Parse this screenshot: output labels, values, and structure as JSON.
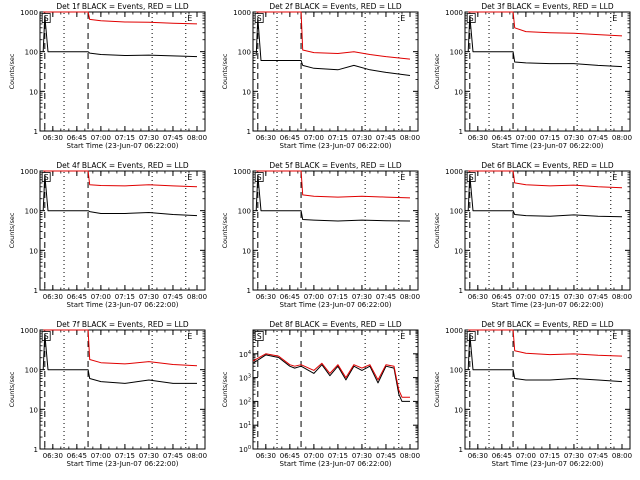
{
  "colors": {
    "events": "#000000",
    "lld": "#e00000",
    "axis": "#000000",
    "background": "#ffffff"
  },
  "chart_data": [
    {
      "type": "line",
      "title": "Det 1f BLACK = Events, RED = LLD",
      "xlabel": "Start Time (23-Jun-07 06:22:00)",
      "ylabel": "Counts/sec",
      "x_ticks": [
        "06:30",
        "06:45",
        "07:00",
        "07:15",
        "07:30",
        "07:45",
        "08:00"
      ],
      "y_ticks": [
        "1",
        "10",
        "100",
        "1000"
      ],
      "y_scale": "log",
      "ylim": [
        1,
        1000
      ],
      "markers": [
        "S",
        "E"
      ],
      "series": [
        {
          "name": "Events",
          "color": "#000000",
          "x": [
            "06:24",
            "06:25",
            "06:27",
            "06:52",
            "06:53",
            "07:00",
            "07:15",
            "07:30",
            "07:45",
            "08:00"
          ],
          "values": [
            100,
            800,
            100,
            100,
            92,
            85,
            80,
            82,
            78,
            75
          ]
        },
        {
          "name": "LLD",
          "color": "#e00000",
          "x": [
            "06:24",
            "06:25",
            "06:27",
            "06:52",
            "06:53",
            "07:00",
            "07:15",
            "07:30",
            "07:45",
            "08:00"
          ],
          "values": [
            1000,
            1000,
            1000,
            1000,
            650,
            600,
            560,
            550,
            520,
            500
          ]
        }
      ]
    },
    {
      "type": "line",
      "title": "Det 2f BLACK = Events, RED = LLD",
      "xlabel": "Start Time (23-Jun-07 06:22:00)",
      "ylabel": "Counts/sec",
      "x_ticks": [
        "06:30",
        "06:45",
        "07:00",
        "07:15",
        "07:30",
        "07:45",
        "08:00"
      ],
      "y_ticks": [
        "1",
        "10",
        "100",
        "1000"
      ],
      "y_scale": "log",
      "ylim": [
        1,
        1000
      ],
      "markers": [
        "S",
        "E"
      ],
      "series": [
        {
          "name": "Events",
          "color": "#000000",
          "x": [
            "06:24",
            "06:25",
            "06:27",
            "06:52",
            "06:53",
            "07:00",
            "07:15",
            "07:25",
            "07:35",
            "07:45",
            "08:00"
          ],
          "values": [
            80,
            700,
            60,
            60,
            45,
            38,
            35,
            45,
            35,
            30,
            25
          ]
        },
        {
          "name": "LLD",
          "color": "#e00000",
          "x": [
            "06:24",
            "06:25",
            "06:27",
            "06:52",
            "06:53",
            "07:00",
            "07:15",
            "07:25",
            "07:35",
            "07:45",
            "08:00"
          ],
          "values": [
            1000,
            1000,
            1000,
            1000,
            110,
            95,
            90,
            100,
            85,
            75,
            65
          ]
        }
      ]
    },
    {
      "type": "line",
      "title": "Det 3f BLACK = Events, RED = LLD",
      "xlabel": "Start Time (23-Jun-07 06:22:00)",
      "ylabel": "Counts/sec",
      "x_ticks": [
        "06:30",
        "06:45",
        "07:00",
        "07:15",
        "07:30",
        "07:45",
        "08:00"
      ],
      "y_ticks": [
        "1",
        "10",
        "100",
        "1000"
      ],
      "y_scale": "log",
      "ylim": [
        1,
        1000
      ],
      "markers": [
        "S",
        "E"
      ],
      "series": [
        {
          "name": "Events",
          "color": "#000000",
          "x": [
            "06:24",
            "06:25",
            "06:27",
            "06:52",
            "06:53",
            "07:00",
            "07:15",
            "07:30",
            "07:45",
            "08:00"
          ],
          "values": [
            100,
            800,
            100,
            100,
            55,
            52,
            50,
            50,
            45,
            42
          ]
        },
        {
          "name": "LLD",
          "color": "#e00000",
          "x": [
            "06:24",
            "06:25",
            "06:27",
            "06:52",
            "06:53",
            "07:00",
            "07:15",
            "07:30",
            "07:45",
            "08:00"
          ],
          "values": [
            1000,
            1000,
            1000,
            1000,
            400,
            320,
            300,
            290,
            270,
            250
          ]
        }
      ]
    },
    {
      "type": "line",
      "title": "Det 4f BLACK = Events, RED = LLD",
      "xlabel": "Start Time (23-Jun-07 06:22:00)",
      "ylabel": "Counts/sec",
      "x_ticks": [
        "06:30",
        "06:45",
        "07:00",
        "07:15",
        "07:30",
        "07:45",
        "08:00"
      ],
      "y_ticks": [
        "1",
        "10",
        "100",
        "1000"
      ],
      "y_scale": "log",
      "ylim": [
        1,
        1000
      ],
      "markers": [
        "S",
        "E"
      ],
      "series": [
        {
          "name": "Events",
          "color": "#000000",
          "x": [
            "06:24",
            "06:25",
            "06:27",
            "06:52",
            "06:53",
            "07:00",
            "07:15",
            "07:30",
            "07:45",
            "08:00"
          ],
          "values": [
            100,
            800,
            100,
            100,
            95,
            85,
            85,
            90,
            80,
            75
          ]
        },
        {
          "name": "LLD",
          "color": "#e00000",
          "x": [
            "06:24",
            "06:25",
            "06:27",
            "06:52",
            "06:53",
            "07:00",
            "07:15",
            "07:30",
            "07:45",
            "08:00"
          ],
          "values": [
            1000,
            1000,
            1000,
            1000,
            450,
            430,
            420,
            450,
            420,
            400
          ]
        }
      ]
    },
    {
      "type": "line",
      "title": "Det 5f BLACK = Events, RED = LLD",
      "xlabel": "Start Time (23-Jun-07 06:22:00)",
      "ylabel": "Counts/sec",
      "x_ticks": [
        "06:30",
        "06:45",
        "07:00",
        "07:15",
        "07:30",
        "07:45",
        "08:00"
      ],
      "y_ticks": [
        "1",
        "10",
        "100",
        "1000"
      ],
      "y_scale": "log",
      "ylim": [
        1,
        1000
      ],
      "markers": [
        "S",
        "E"
      ],
      "series": [
        {
          "name": "Events",
          "color": "#000000",
          "x": [
            "06:24",
            "06:25",
            "06:27",
            "06:52",
            "06:53",
            "07:00",
            "07:15",
            "07:30",
            "07:45",
            "08:00"
          ],
          "values": [
            100,
            800,
            100,
            100,
            60,
            58,
            55,
            58,
            56,
            55
          ]
        },
        {
          "name": "LLD",
          "color": "#e00000",
          "x": [
            "06:24",
            "06:25",
            "06:27",
            "06:52",
            "06:53",
            "07:00",
            "07:15",
            "07:30",
            "07:45",
            "08:00"
          ],
          "values": [
            1000,
            1000,
            1000,
            1000,
            250,
            230,
            220,
            230,
            220,
            210
          ]
        }
      ]
    },
    {
      "type": "line",
      "title": "Det 6f BLACK = Events, RED = LLD",
      "xlabel": "Start Time (23-Jun-07 06:22:00)",
      "ylabel": "Counts/sec",
      "x_ticks": [
        "06:30",
        "06:45",
        "07:00",
        "07:15",
        "07:30",
        "07:45",
        "08:00"
      ],
      "y_ticks": [
        "1",
        "10",
        "100",
        "1000"
      ],
      "y_scale": "log",
      "ylim": [
        1,
        1000
      ],
      "markers": [
        "S",
        "E"
      ],
      "series": [
        {
          "name": "Events",
          "color": "#000000",
          "x": [
            "06:24",
            "06:25",
            "06:27",
            "06:52",
            "06:53",
            "07:00",
            "07:15",
            "07:30",
            "07:45",
            "08:00"
          ],
          "values": [
            100,
            800,
            100,
            100,
            80,
            75,
            72,
            78,
            72,
            70
          ]
        },
        {
          "name": "LLD",
          "color": "#e00000",
          "x": [
            "06:24",
            "06:25",
            "06:27",
            "06:52",
            "06:53",
            "07:00",
            "07:15",
            "07:30",
            "07:45",
            "08:00"
          ],
          "values": [
            1000,
            1000,
            1000,
            1000,
            500,
            450,
            420,
            440,
            400,
            380
          ]
        }
      ]
    },
    {
      "type": "line",
      "title": "Det 7f BLACK = Events, RED = LLD",
      "xlabel": "Start Time (23-Jun-07 06:22:00)",
      "ylabel": "Counts/sec",
      "x_ticks": [
        "06:30",
        "06:45",
        "07:00",
        "07:15",
        "07:30",
        "07:45",
        "08:00"
      ],
      "y_ticks": [
        "1",
        "10",
        "100",
        "1000"
      ],
      "y_scale": "log",
      "ylim": [
        1,
        1000
      ],
      "markers": [
        "S",
        "E"
      ],
      "series": [
        {
          "name": "Events",
          "color": "#000000",
          "x": [
            "06:24",
            "06:25",
            "06:27",
            "06:52",
            "06:53",
            "07:00",
            "07:15",
            "07:30",
            "07:45",
            "08:00"
          ],
          "values": [
            100,
            800,
            100,
            100,
            60,
            50,
            45,
            55,
            45,
            45
          ]
        },
        {
          "name": "LLD",
          "color": "#e00000",
          "x": [
            "06:24",
            "06:25",
            "06:27",
            "06:52",
            "06:53",
            "07:00",
            "07:15",
            "07:30",
            "07:45",
            "08:00"
          ],
          "values": [
            1000,
            1000,
            1000,
            1000,
            180,
            150,
            140,
            160,
            135,
            125
          ]
        }
      ]
    },
    {
      "type": "line",
      "title": "Det 8f BLACK = Events, RED = LLD",
      "xlabel": "Start Time (23-Jun-07 06:22:00)",
      "ylabel": "Counts/sec",
      "x_ticks": [
        "06:30",
        "06:45",
        "07:00",
        "07:15",
        "07:30",
        "07:45",
        "08:00"
      ],
      "y_ticks": [
        "10^0",
        "10^1",
        "10^2",
        "10^3",
        "10^4"
      ],
      "y_scale": "log",
      "ylim": [
        1,
        100000
      ],
      "markers": [
        "S",
        "E"
      ],
      "series": [
        {
          "name": "Events",
          "color": "#000000",
          "x": [
            "06:22",
            "06:30",
            "06:38",
            "06:45",
            "06:48",
            "06:52",
            "07:00",
            "07:05",
            "07:10",
            "07:15",
            "07:20",
            "07:25",
            "07:30",
            "07:35",
            "07:40",
            "07:45",
            "07:50",
            "07:53",
            "07:55",
            "08:00"
          ],
          "values": [
            4000,
            9000,
            7000,
            3000,
            2500,
            3000,
            1500,
            3500,
            1200,
            3000,
            800,
            3000,
            2000,
            3000,
            600,
            3000,
            2500,
            200,
            100,
            100
          ]
        },
        {
          "name": "LLD",
          "color": "#e00000",
          "x": [
            "06:22",
            "06:30",
            "06:38",
            "06:45",
            "06:48",
            "06:52",
            "07:00",
            "07:05",
            "07:10",
            "07:15",
            "07:20",
            "07:25",
            "07:30",
            "07:35",
            "07:40",
            "07:45",
            "07:50",
            "07:53",
            "07:55",
            "08:00"
          ],
          "values": [
            5000,
            10000,
            8000,
            3500,
            3000,
            3500,
            2000,
            4000,
            1500,
            3500,
            1000,
            3500,
            2500,
            3500,
            800,
            3500,
            3000,
            300,
            150,
            150
          ]
        }
      ]
    },
    {
      "type": "line",
      "title": "Det 9f BLACK = Events, RED = LLD",
      "xlabel": "Start Time (23-Jun-07 06:22:00)",
      "ylabel": "Counts/sec",
      "x_ticks": [
        "06:30",
        "06:45",
        "07:00",
        "07:15",
        "07:30",
        "07:45",
        "08:00"
      ],
      "y_ticks": [
        "1",
        "10",
        "100",
        "1000"
      ],
      "y_scale": "log",
      "ylim": [
        1,
        1000
      ],
      "markers": [
        "S",
        "E"
      ],
      "series": [
        {
          "name": "Events",
          "color": "#000000",
          "x": [
            "06:24",
            "06:25",
            "06:27",
            "06:52",
            "06:53",
            "07:00",
            "07:15",
            "07:30",
            "07:45",
            "08:00"
          ],
          "values": [
            100,
            800,
            100,
            100,
            60,
            55,
            55,
            60,
            55,
            50
          ]
        },
        {
          "name": "LLD",
          "color": "#e00000",
          "x": [
            "06:24",
            "06:25",
            "06:27",
            "06:52",
            "06:53",
            "07:00",
            "07:15",
            "07:30",
            "07:45",
            "08:00"
          ],
          "values": [
            1000,
            1000,
            1000,
            1000,
            300,
            260,
            240,
            250,
            230,
            220
          ]
        }
      ]
    }
  ]
}
